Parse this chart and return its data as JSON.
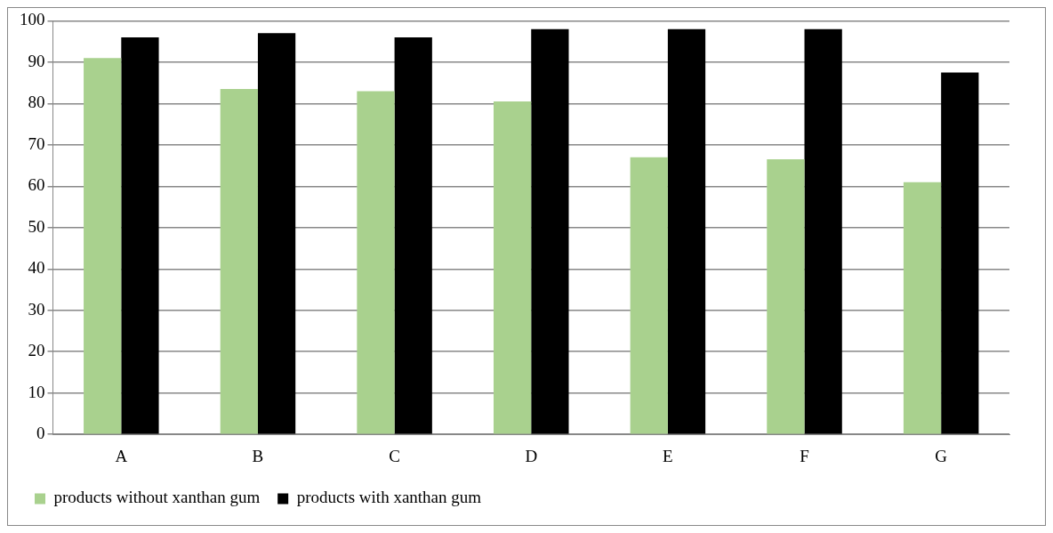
{
  "chart_data": {
    "type": "bar",
    "categories": [
      "A",
      "B",
      "C",
      "D",
      "E",
      "F",
      "G"
    ],
    "series": [
      {
        "name": "products without xanthan gum",
        "color": "#a9d18e",
        "values": [
          91,
          83.5,
          83,
          80.5,
          67,
          66.5,
          61
        ]
      },
      {
        "name": "products with xanthan gum",
        "color": "#000000",
        "values": [
          96,
          97,
          96,
          98,
          98,
          98,
          87.5
        ]
      }
    ],
    "ylim": [
      0,
      100
    ],
    "yticks": [
      0,
      10,
      20,
      30,
      40,
      50,
      60,
      70,
      80,
      90,
      100
    ],
    "grid": "y",
    "legend": "bottom left"
  }
}
